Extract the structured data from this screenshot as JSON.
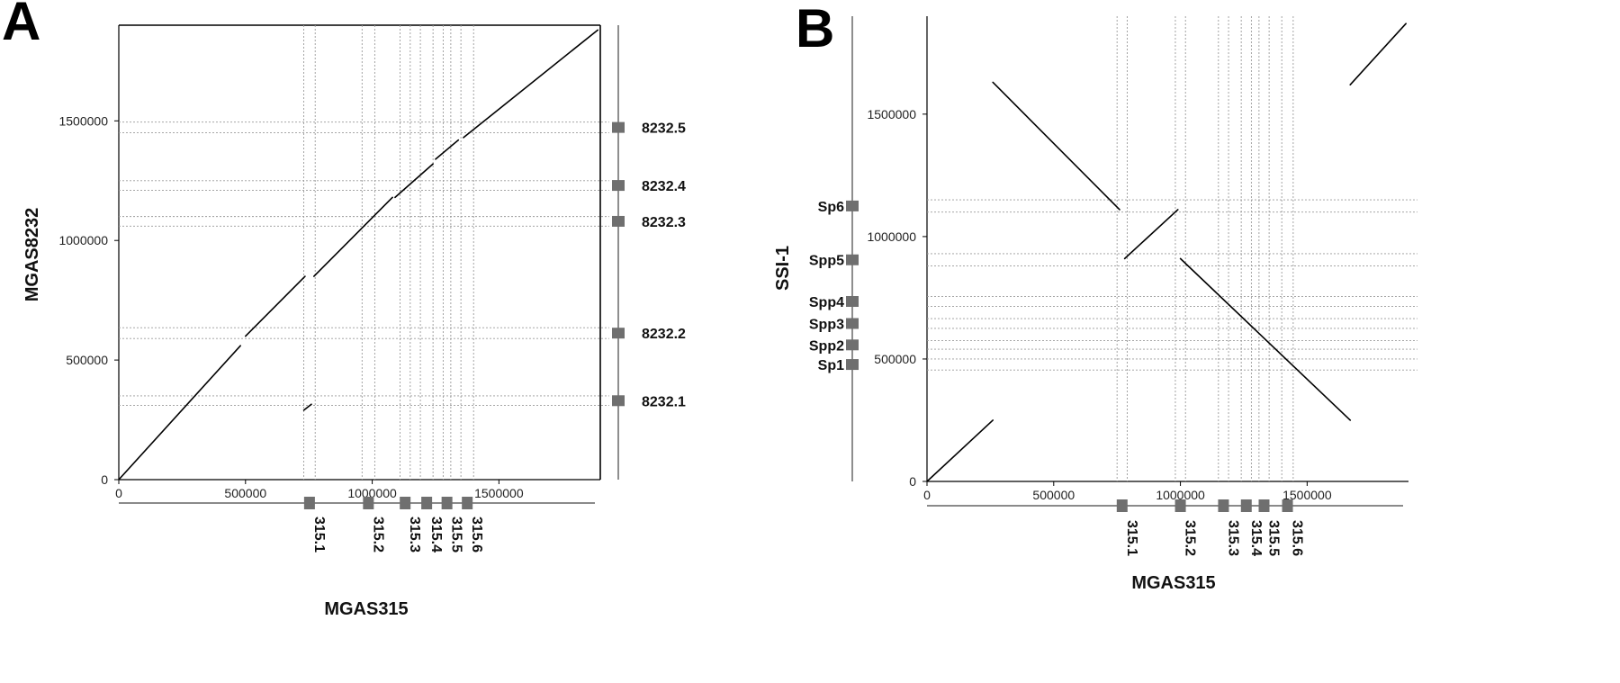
{
  "chart_data": [
    {
      "panel_label": "A",
      "type": "scatter",
      "subtype": "dot plot",
      "xlabel": "MGAS315",
      "ylabel": "MGAS8232",
      "xlim": [
        0,
        1900000
      ],
      "ylim": [
        0,
        1900000
      ],
      "x_ticks": [
        0,
        500000,
        1000000,
        1500000
      ],
      "x_tick_labels": [
        "0",
        "500000",
        "1000000",
        "1500000"
      ],
      "y_ticks": [
        0,
        500000,
        1000000,
        1500000
      ],
      "y_tick_labels": [
        "0",
        "500000",
        "1000000",
        "1500000"
      ],
      "x_regions": [
        {
          "label": "315.1",
          "start": 730000,
          "end": 775000
        },
        {
          "label": "315.2",
          "start": 960000,
          "end": 1010000
        },
        {
          "label": "315.3",
          "start": 1110000,
          "end": 1150000
        },
        {
          "label": "315.4",
          "start": 1190000,
          "end": 1240000
        },
        {
          "label": "315.5",
          "start": 1280000,
          "end": 1310000
        },
        {
          "label": "315.6",
          "start": 1350000,
          "end": 1400000
        }
      ],
      "y_regions": [
        {
          "label": "8232.1",
          "start": 310000,
          "end": 350000
        },
        {
          "label": "8232.2",
          "start": 590000,
          "end": 635000
        },
        {
          "label": "8232.3",
          "start": 1060000,
          "end": 1100000
        },
        {
          "label": "8232.4",
          "start": 1210000,
          "end": 1250000
        },
        {
          "label": "8232.5",
          "start": 1450000,
          "end": 1495000
        }
      ],
      "segments": [
        {
          "x": [
            0,
            480000
          ],
          "y": [
            0,
            560000
          ]
        },
        {
          "x": [
            500000,
            735000
          ],
          "y": [
            600000,
            850000
          ]
        },
        {
          "x": [
            770000,
            1080000
          ],
          "y": [
            850000,
            1180000
          ]
        },
        {
          "x": [
            1090000,
            1240000
          ],
          "y": [
            1180000,
            1320000
          ]
        },
        {
          "x": [
            1250000,
            1340000
          ],
          "y": [
            1340000,
            1420000
          ]
        },
        {
          "x": [
            1360000,
            1890000
          ],
          "y": [
            1430000,
            1880000
          ]
        },
        {
          "x": [
            730000,
            760000
          ],
          "y": [
            290000,
            315000
          ]
        }
      ],
      "grid": false,
      "legend": "none"
    },
    {
      "panel_label": "B",
      "type": "scatter",
      "subtype": "dot plot",
      "xlabel": "MGAS315",
      "ylabel": "SSI-1",
      "xlim": [
        0,
        1900000
      ],
      "ylim": [
        0,
        1900000
      ],
      "x_ticks": [
        0,
        500000,
        1000000,
        1500000
      ],
      "x_tick_labels": [
        "0",
        "500000",
        "1000000",
        "1500000"
      ],
      "y_ticks": [
        0,
        500000,
        1000000,
        1500000
      ],
      "y_tick_labels": [
        "0",
        "500000",
        "1000000",
        "1500000"
      ],
      "x_regions": [
        {
          "label": "315.1",
          "start": 750000,
          "end": 790000
        },
        {
          "label": "315.2",
          "start": 980000,
          "end": 1020000
        },
        {
          "label": "315.3",
          "start": 1150000,
          "end": 1190000
        },
        {
          "label": "315.4",
          "start": 1240000,
          "end": 1280000
        },
        {
          "label": "315.5",
          "start": 1310000,
          "end": 1350000
        },
        {
          "label": "315.6",
          "start": 1400000,
          "end": 1445000
        }
      ],
      "y_regions": [
        {
          "label": "Sp1",
          "start": 455000,
          "end": 500000
        },
        {
          "label": "Spp2",
          "start": 540000,
          "end": 575000
        },
        {
          "label": "Spp3",
          "start": 625000,
          "end": 665000
        },
        {
          "label": "Spp4",
          "start": 715000,
          "end": 755000
        },
        {
          "label": "Spp5",
          "start": 880000,
          "end": 930000
        },
        {
          "label": "Sp6",
          "start": 1100000,
          "end": 1150000
        }
      ],
      "segments": [
        {
          "x": [
            0,
            260000
          ],
          "y": [
            0,
            250000
          ]
        },
        {
          "x": [
            260000,
            760000
          ],
          "y": [
            1630000,
            1110000
          ]
        },
        {
          "x": [
            780000,
            990000
          ],
          "y": [
            910000,
            1110000
          ]
        },
        {
          "x": [
            1000000,
            1670000
          ],
          "y": [
            910000,
            250000
          ]
        },
        {
          "x": [
            1670000,
            1890000
          ],
          "y": [
            1620000,
            1870000
          ]
        }
      ],
      "grid": false,
      "legend": "none"
    }
  ]
}
